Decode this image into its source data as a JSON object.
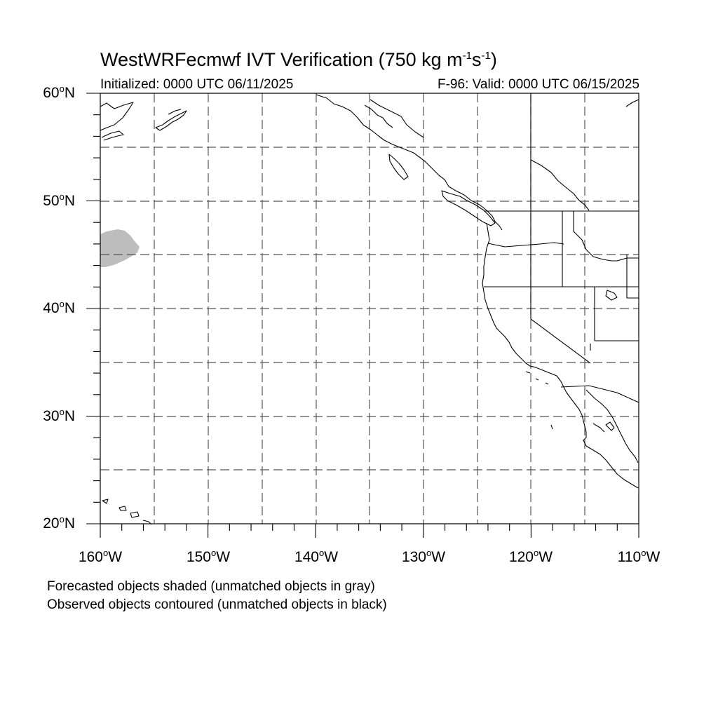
{
  "title": {
    "main": "WestWRFecmwf IVT Verification (750 kg m",
    "exp1": "-1",
    "mid": "s",
    "exp2": "-1",
    "end": ")"
  },
  "init_text": "Initialized: 0000 UTC 06/11/2025",
  "valid_text": "F-96: Valid: 0000 UTC 06/15/2025",
  "degree_symbol": "o",
  "lat_labels": [
    {
      "value": "60",
      "hemi": "N"
    },
    {
      "value": "50",
      "hemi": "N"
    },
    {
      "value": "40",
      "hemi": "N"
    },
    {
      "value": "30",
      "hemi": "N"
    },
    {
      "value": "20",
      "hemi": "N"
    }
  ],
  "lon_labels": [
    {
      "value": "160",
      "hemi": "W"
    },
    {
      "value": "150",
      "hemi": "W"
    },
    {
      "value": "140",
      "hemi": "W"
    },
    {
      "value": "130",
      "hemi": "W"
    },
    {
      "value": "120",
      "hemi": "W"
    },
    {
      "value": "110",
      "hemi": "W"
    }
  ],
  "notes": [
    "Forecasted objects shaded (unmatched objects in gray)",
    "Observed objects contoured (unmatched objects in black)"
  ],
  "map_extent": {
    "lon_min": -160,
    "lon_max": -110,
    "lat_min": 20,
    "lat_max": 60
  },
  "forecast_object_color": "#bdbdbd",
  "coastline_color": "#000000"
}
